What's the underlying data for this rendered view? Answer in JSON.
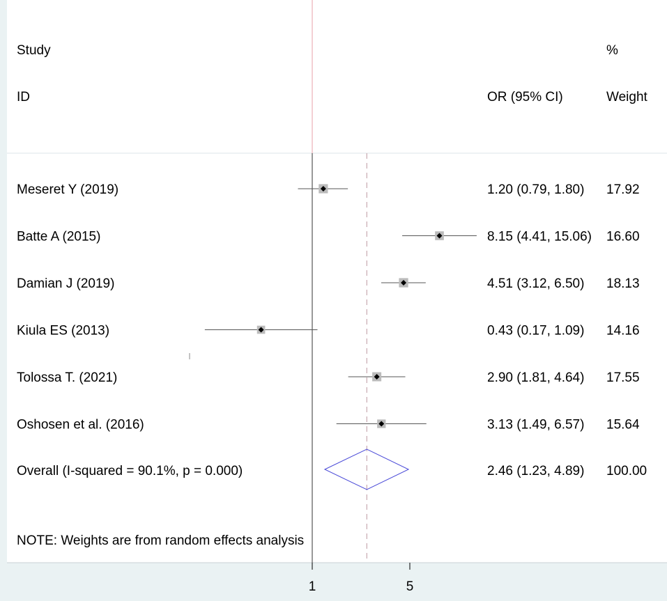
{
  "chart_data": {
    "type": "forest",
    "headers": {
      "study_top": "Study",
      "study_bottom": "ID",
      "weight_top": "%",
      "or_label": "OR (95% CI)",
      "weight_bottom": "Weight"
    },
    "studies": [
      {
        "label": "Meseret Y (2019)",
        "or": 1.2,
        "lo": 0.79,
        "hi": 1.8,
        "weight": 17.92,
        "ci_text": "1.20 (0.79, 1.80)",
        "weight_text": "17.92"
      },
      {
        "label": "Batte A (2015)",
        "or": 8.15,
        "lo": 4.41,
        "hi": 15.06,
        "weight": 16.6,
        "ci_text": "8.15 (4.41, 15.06)",
        "weight_text": "16.60"
      },
      {
        "label": "Damian J (2019)",
        "or": 4.51,
        "lo": 3.12,
        "hi": 6.5,
        "weight": 18.13,
        "ci_text": "4.51 (3.12, 6.50)",
        "weight_text": "18.13"
      },
      {
        "label": "Kiula ES (2013)",
        "or": 0.43,
        "lo": 0.17,
        "hi": 1.09,
        "weight": 14.16,
        "ci_text": "0.43 (0.17, 1.09)",
        "weight_text": "14.16"
      },
      {
        "label": "Tolossa T. (2021)",
        "or": 2.9,
        "lo": 1.81,
        "hi": 4.64,
        "weight": 17.55,
        "ci_text": "2.90 (1.81, 4.64)",
        "weight_text": "17.55"
      },
      {
        "label": "Oshosen et al. (2016)",
        "or": 3.13,
        "lo": 1.49,
        "hi": 6.57,
        "weight": 15.64,
        "ci_text": "3.13 (1.49, 6.57)",
        "weight_text": "15.64"
      }
    ],
    "overall": {
      "label": "Overall  (I-squared = 90.1%, p = 0.000)",
      "or": 2.46,
      "lo": 1.23,
      "hi": 4.89,
      "ci_text": "2.46 (1.23, 4.89)",
      "weight_text": "100.00"
    },
    "note": "NOTE: Weights are from random effects analysis",
    "x_scale": "log",
    "x_ticks": [
      {
        "value": 1,
        "label": "1"
      },
      {
        "value": 5,
        "label": "5"
      }
    ],
    "null_line": 1,
    "colors": {
      "background": "#eaf2f3",
      "panel": "#ffffff",
      "diamond": "#4a4ad8",
      "reference_top": "#e8a0a8",
      "dashed_line": "#c8a8b0",
      "ci_line": "#555555",
      "marker": "#000000",
      "weight_box": "#bbbbbb"
    }
  }
}
